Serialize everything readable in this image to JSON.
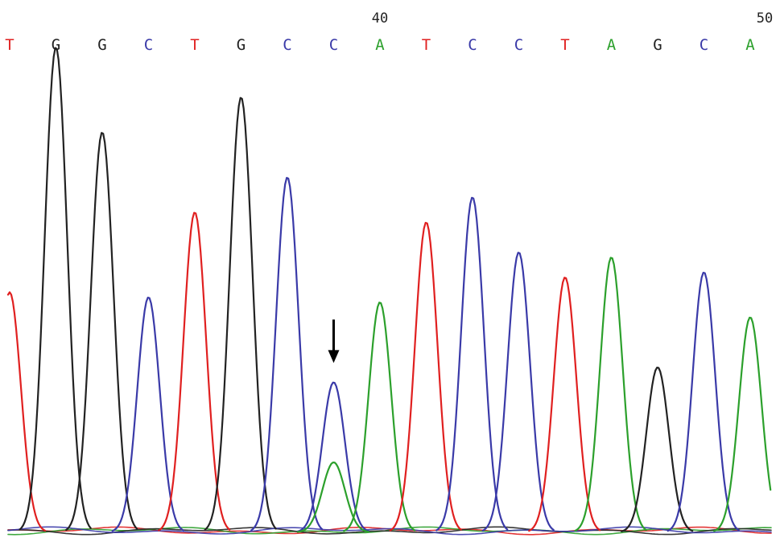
{
  "chart_data": {
    "type": "line",
    "colors": {
      "A": "#2ca02c",
      "C": "#3a3aa8",
      "G": "#222222",
      "T": "#e02020"
    },
    "base_calls": [
      {
        "pos": 32,
        "base": "T"
      },
      {
        "pos": 33,
        "base": "G"
      },
      {
        "pos": 34,
        "base": "G"
      },
      {
        "pos": 35,
        "base": "C"
      },
      {
        "pos": 36,
        "base": "T"
      },
      {
        "pos": 37,
        "base": "G"
      },
      {
        "pos": 38,
        "base": "C"
      },
      {
        "pos": 39,
        "base": "C"
      },
      {
        "pos": 40,
        "base": "A"
      },
      {
        "pos": 41,
        "base": "T"
      },
      {
        "pos": 42,
        "base": "C"
      },
      {
        "pos": 43,
        "base": "C"
      },
      {
        "pos": 44,
        "base": "T"
      },
      {
        "pos": 45,
        "base": "A"
      },
      {
        "pos": 46,
        "base": "G"
      },
      {
        "pos": 47,
        "base": "C"
      },
      {
        "pos": 48,
        "base": "A"
      }
    ],
    "position_labels": [
      {
        "pos": 40,
        "text": "40"
      },
      {
        "pos": 50,
        "text": "50"
      }
    ],
    "ylim": [
      0,
      100
    ],
    "peaks": [
      {
        "series": "T",
        "pos": 32,
        "height": 48
      },
      {
        "series": "G",
        "pos": 33,
        "height": 97
      },
      {
        "series": "G",
        "pos": 34,
        "height": 80
      },
      {
        "series": "C",
        "pos": 35,
        "height": 47
      },
      {
        "series": "T",
        "pos": 36,
        "height": 64
      },
      {
        "series": "G",
        "pos": 37,
        "height": 87
      },
      {
        "series": "C",
        "pos": 38,
        "height": 71
      },
      {
        "series": "C",
        "pos": 39,
        "height": 30
      },
      {
        "series": "A",
        "pos": 39,
        "height": 14
      },
      {
        "series": "A",
        "pos": 40,
        "height": 46
      },
      {
        "series": "T",
        "pos": 41,
        "height": 62
      },
      {
        "series": "C",
        "pos": 42,
        "height": 67
      },
      {
        "series": "C",
        "pos": 43,
        "height": 56
      },
      {
        "series": "T",
        "pos": 44,
        "height": 51
      },
      {
        "series": "A",
        "pos": 45,
        "height": 55
      },
      {
        "series": "G",
        "pos": 46,
        "height": 33
      },
      {
        "series": "C",
        "pos": 47,
        "height": 52
      },
      {
        "series": "A",
        "pos": 48,
        "height": 43
      }
    ],
    "mutation_marker": {
      "pos": 39
    }
  }
}
